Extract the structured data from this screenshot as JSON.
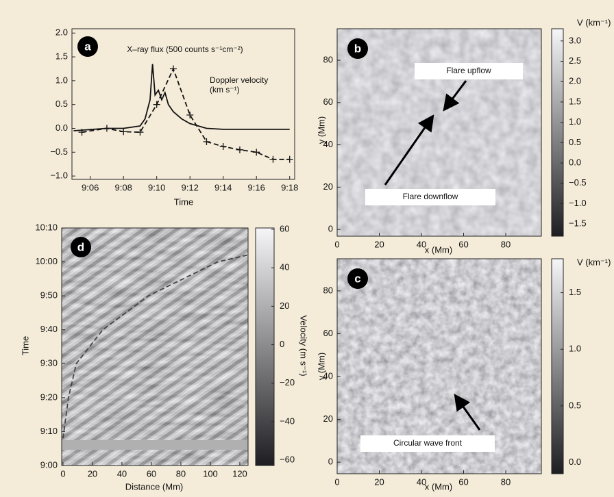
{
  "chart_data": [
    {
      "type": "line",
      "label": "a",
      "x_label": "Time",
      "xlim": [
        544.9,
        558.3
      ],
      "xticks": [
        {
          "value": 546,
          "label": "9:06"
        },
        {
          "value": 548,
          "label": "9:08"
        },
        {
          "value": 550,
          "label": "9:10"
        },
        {
          "value": 552,
          "label": "9:12"
        },
        {
          "value": 554,
          "label": "9:14"
        },
        {
          "value": 556,
          "label": "9:16"
        },
        {
          "value": 558,
          "label": "9:18"
        }
      ],
      "ylim": [
        -1.07,
        2.09
      ],
      "yticks": [
        {
          "value": -1,
          "label": "−1.0"
        },
        {
          "value": -0.5,
          "label": "−0.5"
        },
        {
          "value": 0,
          "label": "0.0"
        },
        {
          "value": 0.5,
          "label": "0.5"
        },
        {
          "value": 1,
          "label": "1.0"
        },
        {
          "value": 1.5,
          "label": "1.5"
        },
        {
          "value": 2,
          "label": "2.0"
        }
      ],
      "series": [
        {
          "name": "X–ray flux (500 counts s⁻¹cm⁻²)",
          "color": "#111111",
          "dash": false,
          "x": [
            545,
            547,
            548,
            549,
            549.3,
            549.6,
            549.75,
            549.9,
            550.1,
            550.3,
            550.5,
            550.7,
            551,
            551.5,
            552,
            553,
            554,
            558
          ],
          "values": [
            -0.05,
            0.0,
            0.0,
            0.05,
            0.2,
            0.6,
            1.35,
            0.7,
            0.8,
            0.6,
            0.75,
            0.5,
            0.35,
            0.2,
            0.1,
            0.0,
            -0.02,
            -0.02
          ]
        },
        {
          "name": "Doppler velocity",
          "unit": "(km s⁻¹)",
          "color": "#111111",
          "dash": true,
          "marker": "+",
          "x": [
            545.5,
            547,
            548,
            549,
            550,
            551,
            552,
            553,
            554,
            555,
            556,
            557,
            558
          ],
          "values": [
            -0.08,
            0.0,
            -0.07,
            -0.08,
            0.5,
            1.25,
            0.28,
            -0.28,
            -0.38,
            -0.45,
            -0.5,
            -0.65,
            -0.65
          ]
        }
      ]
    },
    {
      "type": "heatmap",
      "label": "b",
      "x_label": "x (Mm)",
      "y_label": "y (Mm)",
      "colorbar_label": "V (km⁻¹)",
      "xlim": [
        0,
        96.9
      ],
      "xticks": [
        0,
        20,
        40,
        60,
        80
      ],
      "ylim": [
        -3.2,
        94.9
      ],
      "yticks": [
        0,
        20,
        40,
        60,
        80
      ],
      "clim": [
        -1.8,
        3.3
      ],
      "cticks": [
        {
          "value": -1.5,
          "label": "−1.5"
        },
        {
          "value": -1,
          "label": "−1.0"
        },
        {
          "value": -0.5,
          "label": "−0.5"
        },
        {
          "value": 0,
          "label": "0.0"
        },
        {
          "value": 0.5,
          "label": "0.5"
        },
        {
          "value": 1,
          "label": "1.0"
        },
        {
          "value": 1.5,
          "label": "1.5"
        },
        {
          "value": 2,
          "label": "2.0"
        },
        {
          "value": 2.5,
          "label": "2.5"
        },
        {
          "value": 3,
          "label": "3.0"
        }
      ],
      "annotations": [
        "Flare upflow",
        "Flare downflow"
      ]
    },
    {
      "type": "heatmap",
      "label": "c",
      "x_label": "x (Mm)",
      "y_label": "y (Mm)",
      "colorbar_label": "V (km⁻¹)",
      "xlim": [
        0,
        96.9
      ],
      "xticks": [
        0,
        20,
        40,
        60,
        80
      ],
      "ylim": [
        -5.4,
        95
      ],
      "yticks": [
        0,
        20,
        40,
        60,
        80
      ],
      "clim": [
        -0.1,
        1.8
      ],
      "cticks": [
        {
          "value": 0,
          "label": "0.0"
        },
        {
          "value": 0.5,
          "label": "0.5"
        },
        {
          "value": 1,
          "label": "1.0"
        },
        {
          "value": 1.5,
          "label": "1.5"
        }
      ],
      "annotations": [
        "Circular wave front"
      ]
    },
    {
      "type": "heatmap",
      "label": "d",
      "x_label": "Distance (Mm)",
      "y_label": "Time",
      "colorbar_label": "Velocity (m s⁻¹)",
      "xlim": [
        -0.9,
        125.6
      ],
      "xticks": [
        0,
        20,
        40,
        60,
        80,
        100,
        120
      ],
      "ylim": [
        540,
        610
      ],
      "yticks": [
        {
          "value": 540,
          "label": "9:00"
        },
        {
          "value": 550,
          "label": "9:10"
        },
        {
          "value": 560,
          "label": "9:20"
        },
        {
          "value": 570,
          "label": "9:30"
        },
        {
          "value": 580,
          "label": "9:40"
        },
        {
          "value": 590,
          "label": "9:50"
        },
        {
          "value": 600,
          "label": "10:00"
        },
        {
          "value": 610,
          "label": "10:10"
        }
      ],
      "clim": [
        -62.8,
        60.7
      ],
      "cticks": [
        {
          "value": -60,
          "label": "−60"
        },
        {
          "value": -40,
          "label": "−40"
        },
        {
          "value": -20,
          "label": "−20"
        },
        0,
        20,
        40,
        60
      ],
      "curve": {
        "color": "#444444",
        "dash": true,
        "x": [
          0,
          3.7,
          9,
          27,
          58,
          105,
          125
        ],
        "values": [
          548,
          560,
          570,
          580,
          590,
          600,
          602
        ]
      }
    }
  ]
}
